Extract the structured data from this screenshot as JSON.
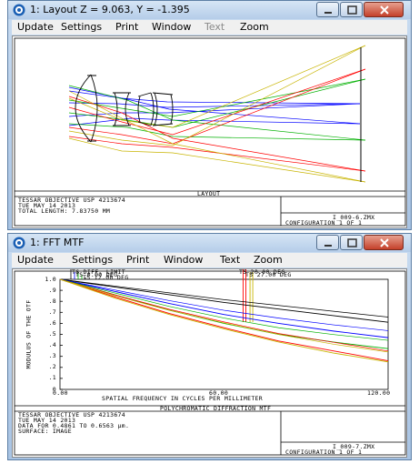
{
  "window1": {
    "title": "1: Layout Z = 9.063, Y = -1.395",
    "menu": [
      "Update",
      "Settings",
      "Print",
      "Window",
      "Text",
      "Zoom"
    ],
    "menu_disabled": [
      false,
      false,
      false,
      false,
      true,
      false
    ],
    "plot_title": "LAYOUT",
    "info": [
      "TESSAR OBJECTIVE USP 4213674",
      "TUE MAY 14 2013",
      "TOTAL LENGTH:      7.83750 MM"
    ],
    "file": "I_009-6.ZMX",
    "config": "CONFIGURATION  1  OF  1"
  },
  "window2": {
    "title": "1: FFT MTF",
    "menu": [
      "Update",
      "Settings",
      "Print",
      "Window",
      "Text",
      "Zoom"
    ],
    "menu_disabled": [
      false,
      false,
      false,
      false,
      false,
      false
    ],
    "plot_title": "POLYCHROMATIC DIFFRACTION MTF",
    "info": [
      "TESSAR OBJECTIVE USP 4213674",
      "TUE MAY 14 2013",
      "DATA FOR 0.4861 TO 0.6563 µm.",
      "SURFACE: IMAGE"
    ],
    "file": "I_009-7.ZMX",
    "config": "CONFIGURATION  1  OF  1"
  },
  "legend": {
    "ts_diff": "TS DIFF. LIMIT",
    "ts_0": "TS 0.00 DEG",
    "ts_12": "TS 12.00 DEG",
    "ts_20": "TS 20.00 DEG",
    "ts_27": "TS 27.00 DEG"
  },
  "colors": {
    "diff": "#000000",
    "field0": "#0000ff",
    "field12": "#00b000",
    "field20": "#ff0000",
    "field27": "#c8b400",
    "title_bg": "#b9d1ec",
    "menu_bg": "#f0f0f0"
  },
  "chart_data": {
    "type": "line",
    "title": "POLYCHROMATIC DIFFRACTION MTF",
    "xlabel": "SPATIAL FREQUENCY IN CYCLES PER MILLIMETER",
    "ylabel": "MODULUS OF THE OTF",
    "xlim": [
      0,
      120
    ],
    "ylim": [
      0,
      1
    ],
    "x_ticks": [
      "0.00",
      "60.00",
      "120.00"
    ],
    "y_ticks": [
      "1.0",
      ".9",
      ".8",
      ".7",
      ".6",
      ".5",
      ".4",
      ".3",
      ".2",
      ".1",
      "0"
    ],
    "grid": false,
    "markers": [
      {
        "series": "TS 20.00 DEG",
        "x": 67.5,
        "color": "#ff0000"
      },
      {
        "series": "TS 27.00 DEG",
        "x": 70,
        "color": "#c8b400"
      }
    ],
    "x": [
      0,
      20,
      40,
      60,
      80,
      100,
      120
    ],
    "series": [
      {
        "name": "TS DIFF. LIMIT",
        "color": "#000000",
        "values": [
          1.0,
          0.93,
          0.86,
          0.79,
          0.73,
          0.67,
          0.61
        ]
      },
      {
        "name": "TS 0.00 DEG",
        "color": "#0000ff",
        "values": [
          1.0,
          0.89,
          0.78,
          0.68,
          0.6,
          0.53,
          0.47
        ]
      },
      {
        "name": "TS 12.00 DEG",
        "color": "#00b000",
        "values": [
          1.0,
          0.86,
          0.72,
          0.6,
          0.5,
          0.43,
          0.37
        ]
      },
      {
        "name": "TS 20.00 DEG",
        "color": "#ff0000",
        "values": [
          1.0,
          0.84,
          0.69,
          0.56,
          0.44,
          0.35,
          0.26
        ]
      },
      {
        "name": "TS 27.00 DEG",
        "color": "#c8b400",
        "values": [
          1.0,
          0.83,
          0.68,
          0.55,
          0.43,
          0.33,
          0.25
        ]
      }
    ]
  }
}
